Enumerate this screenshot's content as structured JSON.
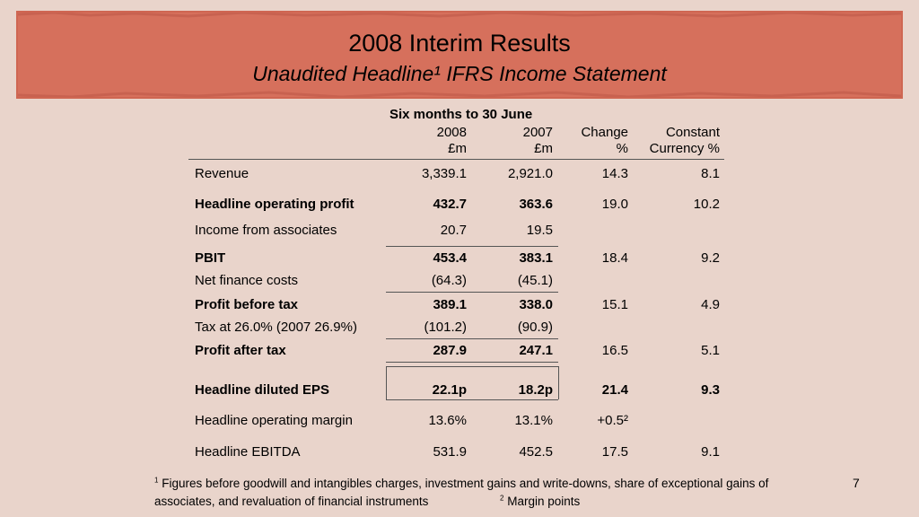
{
  "header": {
    "title": "2008 Interim Results",
    "subtitle": "Unaudited Headline¹ IFRS Income Statement"
  },
  "table": {
    "group_header": "Six months to 30 June",
    "col_2008_year": "2008",
    "col_2008_unit": "£m",
    "col_2007_year": "2007",
    "col_2007_unit": "£m",
    "col_change_a": "Change",
    "col_change_b": "%",
    "col_cc_a": "Constant",
    "col_cc_b": "Currency %",
    "rows": [
      {
        "label": "Revenue",
        "v2008": "3,339.1",
        "v2007": "2,921.0",
        "change": "14.3",
        "cc": "8.1"
      },
      {
        "label": "Headline operating profit",
        "v2008": "432.7",
        "v2007": "363.6",
        "change": "19.0",
        "cc": "10.2"
      },
      {
        "label": "Income from associates",
        "v2008": "20.7",
        "v2007": "19.5",
        "change": "",
        "cc": ""
      },
      {
        "label": "PBIT",
        "v2008": "453.4",
        "v2007": "383.1",
        "change": "18.4",
        "cc": "9.2"
      },
      {
        "label": "Net finance costs",
        "v2008": "(64.3)",
        "v2007": "(45.1)",
        "change": "",
        "cc": ""
      },
      {
        "label": "Profit before tax",
        "v2008": "389.1",
        "v2007": "338.0",
        "change": "15.1",
        "cc": "4.9"
      },
      {
        "label": "Tax at 26.0% (2007 26.9%)",
        "v2008": "(101.2)",
        "v2007": "(90.9)",
        "change": "",
        "cc": ""
      },
      {
        "label": "Profit after tax",
        "v2008": "287.9",
        "v2007": "247.1",
        "change": "16.5",
        "cc": "5.1"
      },
      {
        "label": "Headline diluted EPS",
        "v2008": "22.1p",
        "v2007": "18.2p",
        "change": "21.4",
        "cc": "9.3"
      },
      {
        "label": "Headline operating margin",
        "v2008": "13.6%",
        "v2007": "13.1%",
        "change": "+0.5²",
        "cc": ""
      },
      {
        "label": "Headline EBITDA",
        "v2008": "531.9",
        "v2007": "452.5",
        "change": "17.5",
        "cc": "9.1"
      }
    ]
  },
  "footnotes": {
    "note1_marker": "1",
    "note1_text_a": "Figures before goodwill and intangibles charges, investment gains and write-downs, share of exceptional gains of",
    "note1_text_b": "associates, and revaluation of financial instruments",
    "note2_marker": "2",
    "note2_text": "Margin points"
  },
  "page_number": "7"
}
